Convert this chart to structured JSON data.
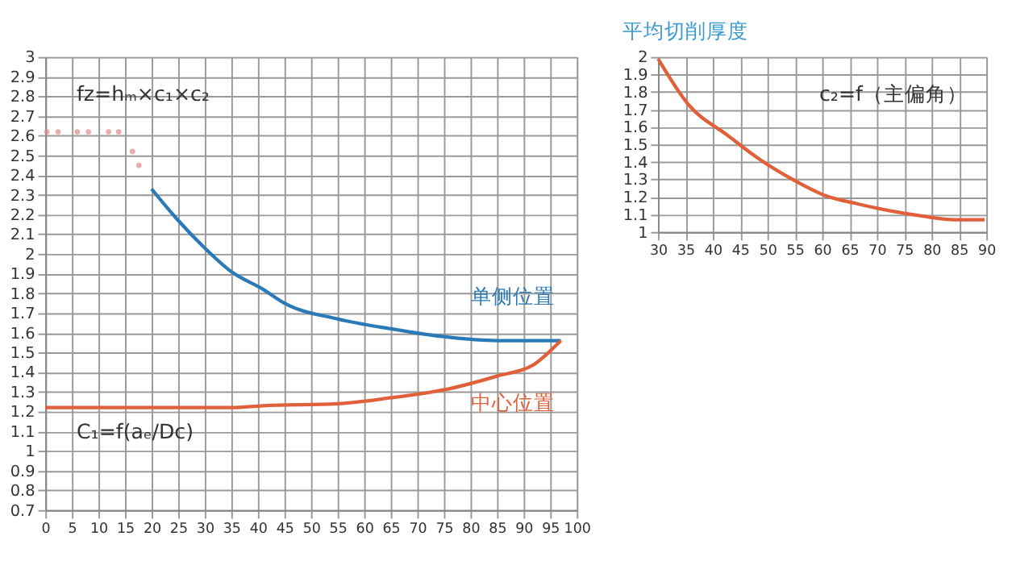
{
  "chart_data": [
    {
      "type": "line",
      "xlim": [
        0,
        100
      ],
      "xticks": [
        0,
        5,
        10,
        15,
        20,
        25,
        30,
        35,
        40,
        45,
        50,
        55,
        60,
        65,
        70,
        75,
        80,
        85,
        90,
        95,
        100
      ],
      "ylim": [
        0.7,
        3
      ],
      "yticks": [
        0.7,
        0.8,
        0.9,
        1,
        1.1,
        1.2,
        1.3,
        1.4,
        1.5,
        1.6,
        1.7,
        1.8,
        1.9,
        2,
        2.1,
        2.2,
        2.3,
        2.4,
        2.5,
        2.6,
        2.7,
        2.8,
        2.9,
        3
      ],
      "grid": true,
      "marker": "none",
      "series": [
        {
          "name": "单侧位置",
          "color": "#2a7ab8",
          "x": [
            20,
            25,
            30,
            35,
            41,
            45,
            55,
            65,
            75,
            85,
            97
          ],
          "values": [
            2.33,
            2.17,
            2.03,
            1.91,
            1.82,
            1.75,
            1.67,
            1.62,
            1.58,
            1.56,
            1.56
          ]
        },
        {
          "name": "中心位置",
          "color": "#e0603a",
          "x": [
            0,
            10,
            20,
            35,
            41,
            55,
            65,
            75,
            85,
            92,
            97
          ],
          "values": [
            1.22,
            1.22,
            1.22,
            1.22,
            1.23,
            1.24,
            1.27,
            1.31,
            1.38,
            1.44,
            1.56
          ]
        },
        {
          "type": "scatter",
          "color": "#e08a8a",
          "x": [
            0.3,
            2.4,
            6,
            8.1,
            11.9,
            13.8,
            16.4,
            17.6
          ],
          "values": [
            2.62,
            2.62,
            2.62,
            2.62,
            2.62,
            2.62,
            2.52,
            2.45
          ]
        }
      ],
      "annotations": [
        "fz=hₘ×c₁×c₂",
        "C₁=f(aₑ/Dc)"
      ]
    },
    {
      "type": "line",
      "title": "平均切削厚度",
      "xlim": [
        30,
        90
      ],
      "xticks": [
        30,
        35,
        40,
        45,
        50,
        55,
        60,
        65,
        70,
        75,
        80,
        85,
        90
      ],
      "ylim": [
        1,
        2
      ],
      "yticks": [
        1,
        1.1,
        1.2,
        1.3,
        1.4,
        1.5,
        1.6,
        1.7,
        1.8,
        1.9,
        2
      ],
      "grid": true,
      "marker": "none",
      "series": [
        {
          "color": "#e0603a",
          "x": [
            30,
            35.5,
            42.8,
            48.8,
            54.6,
            60.4,
            66.5,
            72.5,
            78.4,
            84.2,
            89.7
          ],
          "values": [
            1.99,
            1.73,
            1.55,
            1.41,
            1.3,
            1.21,
            1.16,
            1.12,
            1.09,
            1.07,
            1.07
          ]
        }
      ],
      "annotations": [
        "c₂=f（主偏角）"
      ]
    }
  ]
}
